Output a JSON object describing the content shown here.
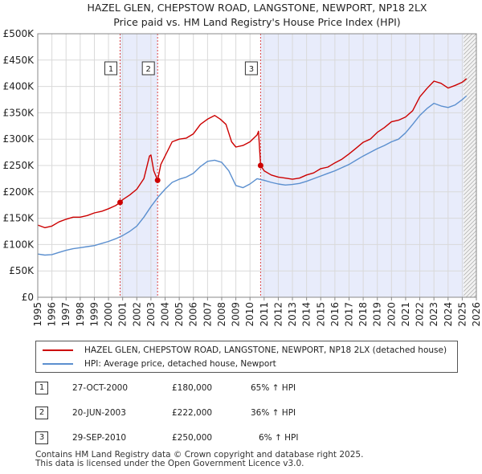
{
  "chart_data": {
    "type": "line",
    "title": "HAZEL GLEN, CHEPSTOW ROAD, LANGSTONE, NEWPORT, NP18 2LX",
    "subtitle": "Price paid vs. HM Land Registry's House Price Index (HPI)",
    "xlim": [
      1995,
      2026
    ],
    "ylim": [
      0,
      500000
    ],
    "x_ticks": [
      "1995",
      "1996",
      "1997",
      "1998",
      "1999",
      "2000",
      "2001",
      "2002",
      "2003",
      "2004",
      "2005",
      "2006",
      "2007",
      "2008",
      "2009",
      "2010",
      "2011",
      "2012",
      "2013",
      "2014",
      "2015",
      "2016",
      "2017",
      "2018",
      "2019",
      "2020",
      "2021",
      "2022",
      "2023",
      "2024",
      "2025",
      "2026"
    ],
    "y_ticks": [
      {
        "value": 0,
        "label": "£0"
      },
      {
        "value": 50000,
        "label": "£50K"
      },
      {
        "value": 100000,
        "label": "£100K"
      },
      {
        "value": 150000,
        "label": "£150K"
      },
      {
        "value": 200000,
        "label": "£200K"
      },
      {
        "value": 250000,
        "label": "£250K"
      },
      {
        "value": 300000,
        "label": "£300K"
      },
      {
        "value": 350000,
        "label": "£350K"
      },
      {
        "value": 400000,
        "label": "£400K"
      },
      {
        "value": 450000,
        "label": "£450K"
      },
      {
        "value": 500000,
        "label": "£500K"
      }
    ],
    "shaded_periods": [
      [
        2000.82,
        2003.47
      ],
      [
        2010.75,
        2025.1
      ]
    ],
    "forecast_start": 2025.1,
    "series": [
      {
        "name": "HAZEL GLEN, CHEPSTOW ROAD, LANGSTONE, NEWPORT, NP18 2LX (detached house)",
        "color": "#cc0000",
        "x": [
          1995.0,
          1995.5,
          1996.0,
          1996.5,
          1997.0,
          1997.5,
          1998.0,
          1998.5,
          1999.0,
          1999.5,
          2000.0,
          2000.5,
          2000.82,
          2001.0,
          2001.5,
          2002.0,
          2002.5,
          2002.9,
          2003.0,
          2003.2,
          2003.47,
          2003.7,
          2004.0,
          2004.5,
          2005.0,
          2005.5,
          2006.0,
          2006.5,
          2007.0,
          2007.5,
          2007.9,
          2008.3,
          2008.7,
          2009.0,
          2009.5,
          2010.0,
          2010.5,
          2010.6,
          2010.75,
          2011.0,
          2011.5,
          2012.0,
          2012.5,
          2013.0,
          2013.5,
          2014.0,
          2014.5,
          2015.0,
          2015.5,
          2016.0,
          2016.5,
          2017.0,
          2017.5,
          2018.0,
          2018.5,
          2019.0,
          2019.5,
          2020.0,
          2020.5,
          2021.0,
          2021.5,
          2022.0,
          2022.5,
          2023.0,
          2023.5,
          2024.0,
          2024.5,
          2025.0,
          2025.3
        ],
        "y": [
          137000,
          132000,
          135000,
          143000,
          148000,
          152000,
          152000,
          155000,
          160000,
          163000,
          168000,
          174000,
          180000,
          185000,
          194000,
          205000,
          225000,
          268000,
          270000,
          240000,
          222000,
          252000,
          268000,
          295000,
          300000,
          302000,
          310000,
          328000,
          338000,
          345000,
          338000,
          328000,
          295000,
          285000,
          288000,
          295000,
          308000,
          315000,
          250000,
          240000,
          232000,
          228000,
          226000,
          224000,
          226000,
          232000,
          236000,
          244000,
          247000,
          255000,
          262000,
          272000,
          283000,
          294000,
          300000,
          313000,
          322000,
          333000,
          336000,
          342000,
          354000,
          380000,
          396000,
          410000,
          406000,
          397000,
          402000,
          408000,
          415000
        ]
      },
      {
        "name": "HPI: Average price, detached house, Newport",
        "color": "#5b8fcf",
        "x": [
          1995.0,
          1995.5,
          1996.0,
          1996.5,
          1997.0,
          1997.5,
          1998.0,
          1998.5,
          1999.0,
          1999.5,
          2000.0,
          2000.5,
          2001.0,
          2001.5,
          2002.0,
          2002.5,
          2003.0,
          2003.5,
          2004.0,
          2004.5,
          2005.0,
          2005.5,
          2006.0,
          2006.5,
          2007.0,
          2007.5,
          2008.0,
          2008.5,
          2009.0,
          2009.5,
          2010.0,
          2010.5,
          2011.0,
          2011.5,
          2012.0,
          2012.5,
          2013.0,
          2013.5,
          2014.0,
          2014.5,
          2015.0,
          2015.5,
          2016.0,
          2016.5,
          2017.0,
          2017.5,
          2018.0,
          2018.5,
          2019.0,
          2019.5,
          2020.0,
          2020.5,
          2021.0,
          2021.5,
          2022.0,
          2022.5,
          2023.0,
          2023.5,
          2024.0,
          2024.5,
          2025.0,
          2025.3
        ],
        "y": [
          82000,
          80000,
          81000,
          85000,
          89000,
          92000,
          94000,
          96000,
          98000,
          102000,
          106000,
          111000,
          117000,
          125000,
          135000,
          152000,
          172000,
          190000,
          205000,
          218000,
          224000,
          228000,
          235000,
          248000,
          258000,
          260000,
          256000,
          240000,
          212000,
          208000,
          215000,
          225000,
          222000,
          218000,
          215000,
          213000,
          214000,
          216000,
          220000,
          225000,
          230000,
          235000,
          240000,
          246000,
          252000,
          260000,
          268000,
          275000,
          282000,
          288000,
          295000,
          300000,
          312000,
          328000,
          345000,
          358000,
          368000,
          363000,
          360000,
          365000,
          375000,
          382000
        ]
      }
    ],
    "sales": [
      {
        "id": "1",
        "x": 2000.82,
        "y": 180000,
        "date": "27-OCT-2000",
        "price": "£180,000",
        "hpi_change": "65% ↑ HPI"
      },
      {
        "id": "2",
        "x": 2003.47,
        "y": 222000,
        "date": "20-JUN-2003",
        "price": "£222,000",
        "hpi_change": "36% ↑ HPI"
      },
      {
        "id": "3",
        "x": 2010.75,
        "y": 250000,
        "date": "29-SEP-2010",
        "price": "£250,000",
        "hpi_change": "6% ↑ HPI"
      }
    ]
  },
  "legend": {
    "red_label": "HAZEL GLEN, CHEPSTOW ROAD, LANGSTONE, NEWPORT, NP18 2LX (detached house)",
    "blue_label": "HPI: Average price, detached house, Newport"
  },
  "footer": {
    "line1": "Contains HM Land Registry data © Crown copyright and database right 2025.",
    "line2": "This data is licensed under the Open Government Licence v3.0."
  },
  "colors": {
    "price_line": "#cc0000",
    "hpi_line": "#5b8fcf",
    "shade": "#e8ecfb",
    "grid": "#d9d9d9"
  }
}
